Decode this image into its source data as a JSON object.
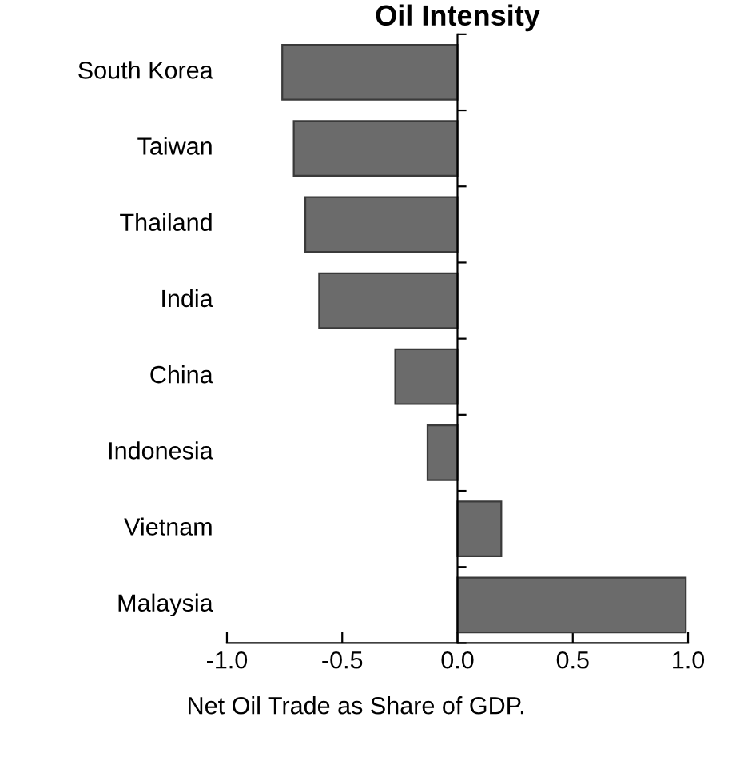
{
  "chart_data": {
    "type": "bar",
    "orientation": "horizontal",
    "title": "Oil Intensity",
    "categories": [
      "South Korea",
      "Taiwan",
      "Thailand",
      "India",
      "China",
      "Indonesia",
      "Vietnam",
      "Malaysia"
    ],
    "values": [
      -0.76,
      -0.71,
      -0.66,
      -0.6,
      -0.27,
      -0.13,
      0.19,
      0.99
    ],
    "color": "#6b6b6b",
    "xlim": [
      -1.0,
      1.0
    ],
    "xticks": [
      {
        "value": -1.0,
        "label": "-1.0"
      },
      {
        "value": -0.5,
        "label": "-0.5"
      },
      {
        "value": 0.0,
        "label": "0.0"
      },
      {
        "value": 0.5,
        "label": "0.5"
      },
      {
        "value": 1.0,
        "label": "1.0"
      }
    ],
    "annotations": [
      "Net Oil Trade as Share of GDP."
    ]
  }
}
